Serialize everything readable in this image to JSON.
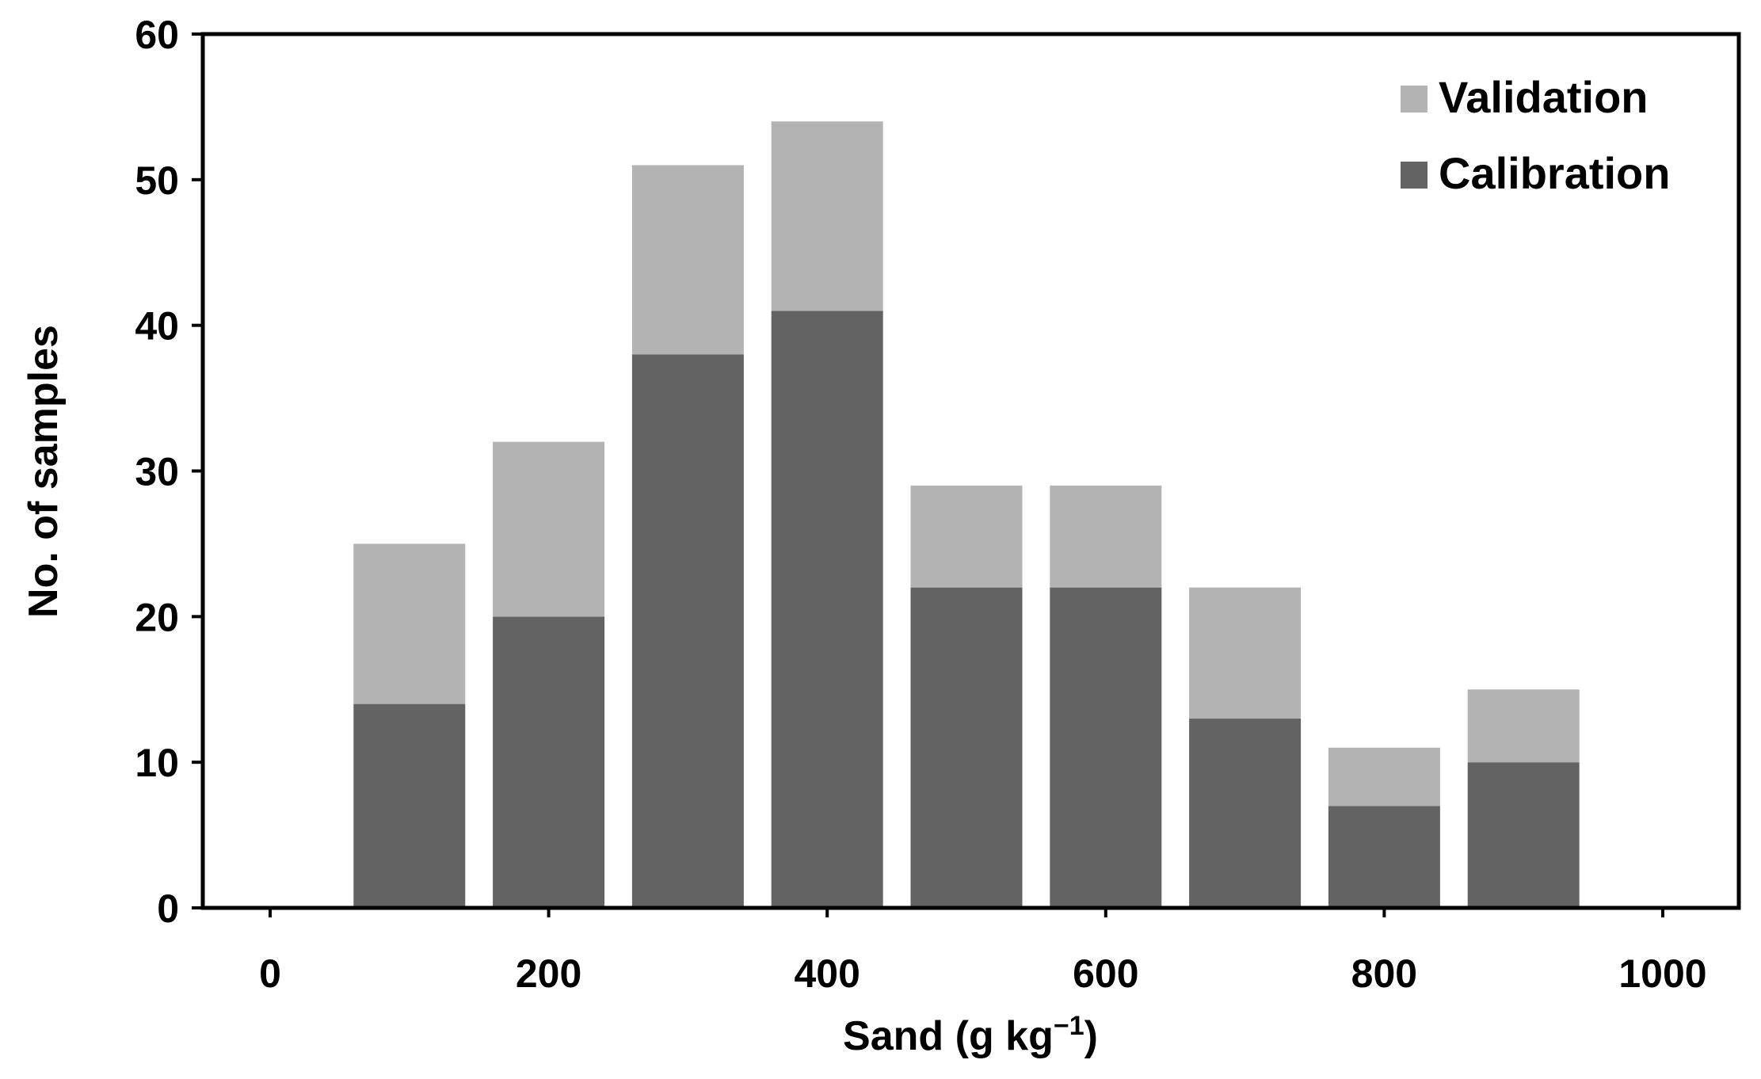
{
  "chart_data": {
    "type": "bar",
    "stacked": true,
    "x": [
      100,
      200,
      300,
      400,
      500,
      600,
      700,
      800,
      900
    ],
    "series": [
      {
        "name": "Calibration",
        "values": [
          14,
          20,
          38,
          41,
          22,
          22,
          13,
          7,
          10
        ],
        "color": "#636363"
      },
      {
        "name": "Validation",
        "values": [
          11,
          12,
          13,
          13,
          7,
          7,
          9,
          4,
          5
        ],
        "color": "#b3b3b3"
      }
    ],
    "xlabel": "Sand  (g kg",
    "xlabel_sup": "−1",
    "xlabel_end": ")",
    "ylabel": "No. of samples",
    "xlim": [
      0,
      1000
    ],
    "ylim": [
      0,
      60
    ],
    "xticks": [
      "0",
      "200",
      "400",
      "600",
      "800",
      "1000"
    ],
    "yticks": [
      "0",
      "10",
      "20",
      "30",
      "40",
      "50",
      "60"
    ],
    "grid": false,
    "legend_position": "top-right",
    "legend_order": [
      "Validation",
      "Calibration"
    ]
  }
}
